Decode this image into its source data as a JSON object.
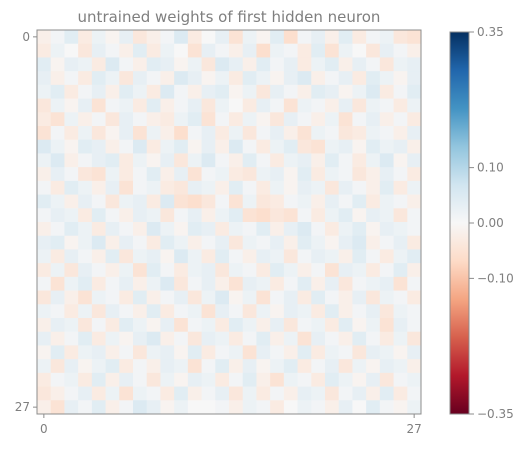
{
  "chart_data": {
    "type": "heatmap",
    "title": "untrained weights of first hidden neuron",
    "xlabel": "",
    "ylabel": "",
    "rows": 28,
    "cols": 28,
    "x_ticks": [
      0,
      27
    ],
    "y_ticks": [
      0,
      27
    ],
    "x_tick_labels": [
      "0",
      "27"
    ],
    "y_tick_labels": [
      "0",
      "27"
    ],
    "colormap": "RdBu",
    "vmin": -0.35,
    "vmax": 0.35,
    "colorbar_ticks": [
      0.35,
      0.1,
      0.0,
      -0.1,
      -0.35
    ],
    "colorbar_tick_labels": [
      "0.35",
      "0.10",
      "0.00",
      "−0.10",
      "−0.35"
    ],
    "colorbar_scale": "symlog",
    "values": [
      [
        -0.02,
        0.01,
        0.04,
        -0.03,
        0.02,
        -0.01,
        0.03,
        -0.04,
        -0.02,
        0.01,
        0.05,
        -0.03,
        0.0,
        0.03,
        -0.05,
        0.02,
        -0.01,
        0.04,
        -0.06,
        0.01,
        0.03,
        -0.02,
        0.04,
        -0.03,
        0.01,
        0.02,
        -0.04,
        -0.05
      ],
      [
        -0.03,
        0.02,
        0.0,
        -0.04,
        0.03,
        0.01,
        -0.02,
        0.04,
        -0.03,
        0.02,
        0.0,
        -0.05,
        0.03,
        0.01,
        -0.02,
        0.03,
        -0.06,
        0.02,
        0.01,
        -0.03,
        0.04,
        -0.05,
        0.02,
        0.0,
        -0.04,
        0.03,
        0.01,
        -0.02
      ],
      [
        0.04,
        -0.01,
        0.03,
        0.02,
        -0.03,
        0.05,
        0.01,
        -0.02,
        0.04,
        0.03,
        -0.01,
        0.02,
        -0.04,
        0.05,
        0.03,
        -0.02,
        0.04,
        0.01,
        0.03,
        -0.03,
        0.02,
        0.04,
        -0.02,
        0.03,
        0.01,
        -0.04,
        0.02,
        0.03
      ],
      [
        0.03,
        -0.02,
        0.01,
        -0.03,
        0.04,
        0.02,
        -0.04,
        0.03,
        0.01,
        -0.02,
        0.05,
        0.03,
        -0.01,
        0.02,
        -0.03,
        0.04,
        0.02,
        -0.01,
        0.03,
        0.05,
        -0.02,
        0.01,
        0.03,
        -0.03,
        0.04,
        0.02,
        -0.01,
        0.03
      ],
      [
        0.02,
        0.04,
        -0.03,
        0.01,
        0.03,
        -0.02,
        0.04,
        0.02,
        -0.03,
        0.05,
        0.01,
        -0.02,
        0.03,
        0.04,
        -0.01,
        0.02,
        -0.04,
        0.03,
        0.01,
        -0.02,
        0.04,
        0.03,
        -0.01,
        0.02,
        0.05,
        -0.03,
        0.01,
        0.04
      ],
      [
        -0.04,
        0.02,
        -0.01,
        0.03,
        -0.05,
        0.01,
        0.02,
        -0.03,
        0.04,
        -0.02,
        0.01,
        0.03,
        -0.04,
        0.02,
        0.0,
        -0.03,
        0.03,
        0.01,
        -0.05,
        0.02,
        0.01,
        -0.02,
        0.03,
        -0.04,
        0.02,
        0.01,
        -0.03,
        0.02
      ],
      [
        -0.03,
        -0.05,
        0.02,
        -0.02,
        0.01,
        -0.04,
        0.03,
        0.01,
        -0.02,
        -0.03,
        0.02,
        0.04,
        -0.05,
        0.01,
        -0.03,
        0.02,
        -0.01,
        -0.04,
        0.03,
        0.01,
        -0.02,
        0.02,
        -0.05,
        0.01,
        0.03,
        -0.02,
        0.01,
        -0.03
      ],
      [
        -0.05,
        0.01,
        -0.03,
        0.02,
        -0.04,
        -0.01,
        0.03,
        -0.05,
        0.02,
        -0.02,
        -0.06,
        0.01,
        0.03,
        -0.03,
        0.02,
        -0.04,
        0.01,
        0.03,
        -0.02,
        -0.05,
        0.02,
        0.01,
        -0.04,
        -0.03,
        0.02,
        0.01,
        -0.02,
        0.03
      ],
      [
        0.05,
        0.02,
        -0.01,
        0.04,
        0.03,
        -0.02,
        0.01,
        0.05,
        -0.03,
        0.02,
        0.04,
        -0.01,
        0.03,
        -0.02,
        0.05,
        0.01,
        -0.03,
        0.02,
        0.04,
        -0.04,
        -0.05,
        0.02,
        0.03,
        -0.01,
        0.04,
        0.02,
        0.03,
        -0.02
      ],
      [
        0.02,
        0.05,
        -0.02,
        0.01,
        0.03,
        0.04,
        -0.03,
        0.02,
        -0.01,
        0.03,
        -0.04,
        0.02,
        0.05,
        0.01,
        -0.02,
        0.04,
        0.01,
        -0.03,
        0.02,
        0.03,
        -0.02,
        0.04,
        0.01,
        -0.03,
        0.02,
        0.05,
        -0.01,
        0.03
      ],
      [
        -0.02,
        0.03,
        0.01,
        -0.04,
        -0.05,
        0.02,
        -0.03,
        0.01,
        0.04,
        -0.02,
        0.03,
        -0.05,
        0.01,
        0.02,
        -0.03,
        -0.04,
        0.02,
        0.03,
        -0.01,
        0.04,
        -0.03,
        0.02,
        0.01,
        -0.04,
        -0.02,
        0.03,
        0.01,
        -0.03
      ],
      [
        0.01,
        -0.03,
        0.04,
        0.02,
        -0.02,
        0.03,
        -0.05,
        0.01,
        0.02,
        -0.03,
        -0.04,
        0.03,
        0.02,
        -0.02,
        0.04,
        0.01,
        -0.03,
        0.02,
        -0.01,
        0.03,
        0.02,
        -0.04,
        0.03,
        0.01,
        -0.02,
        0.04,
        -0.03,
        0.02
      ],
      [
        0.04,
        0.02,
        -0.02,
        0.03,
        0.01,
        -0.04,
        0.02,
        0.03,
        -0.03,
        0.05,
        -0.05,
        -0.06,
        -0.04,
        0.01,
        -0.05,
        0.02,
        -0.04,
        -0.03,
        0.01,
        0.02,
        -0.02,
        0.03,
        0.01,
        0.04,
        -0.03,
        0.02,
        0.01,
        -0.02
      ],
      [
        0.01,
        0.03,
        0.02,
        -0.03,
        0.04,
        0.01,
        -0.02,
        0.03,
        0.02,
        -0.04,
        0.01,
        0.03,
        -0.02,
        0.02,
        0.04,
        -0.05,
        -0.06,
        -0.04,
        -0.05,
        0.01,
        -0.03,
        0.02,
        0.04,
        -0.01,
        0.03,
        0.02,
        -0.04,
        0.01
      ],
      [
        -0.02,
        0.01,
        0.04,
        0.02,
        -0.03,
        0.03,
        0.01,
        -0.02,
        0.05,
        0.02,
        -0.01,
        0.04,
        0.03,
        -0.03,
        0.02,
        0.01,
        0.04,
        -0.02,
        0.03,
        0.05,
        0.01,
        -0.03,
        0.02,
        0.04,
        -0.01,
        0.03,
        0.02,
        0.01
      ],
      [
        0.03,
        0.04,
        -0.01,
        0.02,
        0.05,
        -0.02,
        0.03,
        0.01,
        -0.03,
        0.04,
        0.02,
        -0.02,
        0.01,
        0.03,
        -0.04,
        0.02,
        0.01,
        0.03,
        -0.02,
        0.04,
        0.02,
        -0.01,
        0.03,
        0.05,
        -0.02,
        0.01,
        0.03,
        -0.03
      ],
      [
        0.02,
        -0.03,
        0.03,
        0.01,
        -0.02,
        0.04,
        -0.04,
        0.02,
        0.03,
        -0.01,
        0.05,
        0.02,
        -0.03,
        0.04,
        0.01,
        -0.02,
        0.03,
        0.02,
        -0.04,
        0.01,
        0.03,
        0.02,
        -0.02,
        0.04,
        0.01,
        -0.03,
        0.02,
        0.04
      ],
      [
        -0.03,
        0.02,
        -0.04,
        0.03,
        0.01,
        -0.02,
        0.02,
        -0.05,
        0.04,
        0.01,
        -0.03,
        0.02,
        0.03,
        -0.04,
        0.02,
        0.01,
        -0.03,
        0.04,
        0.02,
        -0.02,
        0.01,
        -0.05,
        0.03,
        0.02,
        -0.03,
        0.01,
        0.04,
        -0.02
      ],
      [
        0.01,
        -0.05,
        0.02,
        0.04,
        -0.03,
        0.01,
        0.03,
        -0.02,
        0.02,
        0.05,
        -0.04,
        0.01,
        0.03,
        -0.02,
        -0.05,
        0.03,
        0.02,
        -0.03,
        0.01,
        0.04,
        -0.02,
        0.03,
        -0.04,
        0.01,
        0.02,
        0.03,
        -0.05,
        0.01
      ],
      [
        -0.04,
        0.03,
        -0.02,
        -0.05,
        0.02,
        0.01,
        -0.03,
        0.04,
        -0.02,
        0.01,
        0.03,
        -0.04,
        0.02,
        0.05,
        -0.01,
        0.02,
        -0.05,
        0.01,
        0.03,
        -0.03,
        0.04,
        0.01,
        -0.02,
        0.03,
        -0.04,
        0.02,
        0.01,
        -0.03
      ],
      [
        0.02,
        0.01,
        -0.03,
        0.02,
        -0.04,
        0.03,
        0.01,
        -0.02,
        0.04,
        -0.03,
        0.01,
        0.02,
        -0.05,
        0.03,
        0.01,
        -0.04,
        0.02,
        -0.01,
        0.03,
        0.02,
        -0.03,
        0.04,
        -0.02,
        0.01,
        0.03,
        -0.04,
        0.02,
        0.01
      ],
      [
        -0.02,
        0.03,
        0.02,
        -0.04,
        0.01,
        -0.03,
        0.04,
        0.02,
        -0.01,
        0.03,
        -0.05,
        0.01,
        0.02,
        -0.03,
        0.04,
        0.02,
        -0.02,
        0.03,
        -0.04,
        0.01,
        0.02,
        -0.03,
        0.04,
        -0.01,
        0.02,
        -0.05,
        0.03,
        0.01
      ],
      [
        0.03,
        -0.02,
        0.01,
        0.04,
        -0.03,
        0.02,
        -0.01,
        0.03,
        0.05,
        -0.02,
        0.01,
        -0.04,
        0.03,
        0.02,
        -0.03,
        0.01,
        0.04,
        -0.02,
        0.02,
        -0.05,
        0.03,
        0.01,
        -0.02,
        0.04,
        0.01,
        -0.03,
        0.02,
        -0.04
      ],
      [
        -0.01,
        0.04,
        -0.03,
        0.02,
        0.03,
        -0.02,
        0.01,
        -0.04,
        0.02,
        0.03,
        -0.01,
        0.04,
        -0.03,
        0.01,
        0.02,
        -0.05,
        0.03,
        0.01,
        -0.02,
        0.04,
        -0.03,
        0.02,
        0.01,
        -0.04,
        0.03,
        0.02,
        -0.01,
        0.03
      ],
      [
        0.02,
        -0.04,
        0.03,
        -0.01,
        0.02,
        0.04,
        -0.03,
        0.01,
        -0.02,
        0.03,
        0.02,
        -0.05,
        0.01,
        0.04,
        -0.02,
        0.03,
        -0.01,
        0.02,
        0.04,
        -0.03,
        0.01,
        0.03,
        -0.04,
        0.02,
        -0.01,
        0.03,
        0.02,
        -0.02
      ],
      [
        -0.03,
        0.01,
        0.02,
        -0.03,
        0.04,
        -0.02,
        0.03,
        0.01,
        -0.04,
        0.02,
        -0.01,
        0.03,
        0.02,
        -0.03,
        0.01,
        0.04,
        -0.02,
        -0.05,
        0.02,
        0.01,
        -0.03,
        0.04,
        0.02,
        -0.01,
        0.03,
        -0.04,
        0.01,
        0.02
      ],
      [
        -0.04,
        -0.02,
        0.01,
        0.03,
        -0.03,
        0.02,
        -0.05,
        0.02,
        0.01,
        -0.03,
        0.04,
        -0.02,
        0.01,
        0.03,
        -0.04,
        0.02,
        -0.03,
        0.01,
        -0.02,
        0.03,
        0.02,
        -0.04,
        0.01,
        0.03,
        -0.02,
        0.04,
        -0.03,
        0.01
      ],
      [
        -0.02,
        -0.05,
        0.03,
        0.01,
        0.04,
        -0.02,
        0.01,
        0.05,
        0.03,
        -0.01,
        0.02,
        0.0,
        0.0,
        0.01,
        -0.02,
        0.02,
        0.01,
        -0.03,
        0.0,
        0.02,
        0.01,
        -0.02,
        0.03,
        0.0,
        0.04,
        0.01,
        -0.01,
        0.02
      ]
    ]
  }
}
